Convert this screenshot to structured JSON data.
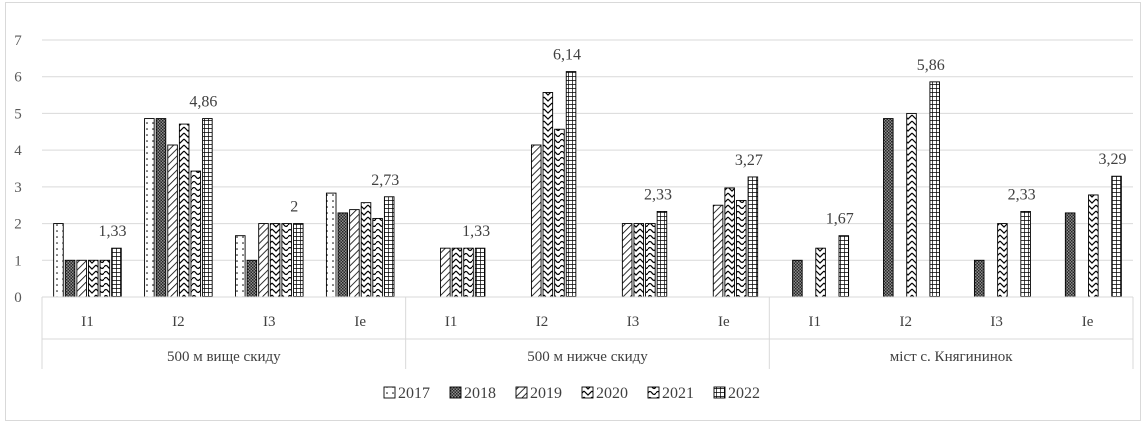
{
  "chart_data": {
    "type": "bar",
    "title": "",
    "xlabel": "",
    "ylabel": "",
    "ylim": [
      0,
      7
    ],
    "yticks": [
      "0",
      "1",
      "2",
      "3",
      "4",
      "5",
      "6",
      "7"
    ],
    "grid": true,
    "legend_position": "bottom",
    "groups": [
      {
        "label": "500 м вище скиду",
        "categories": [
          "I1",
          "I2",
          "I3",
          "Ie"
        ]
      },
      {
        "label": "500 м нижче скиду",
        "categories": [
          "I1",
          "I2",
          "I3",
          "Ie"
        ]
      },
      {
        "label": "міст с. Княгининок",
        "categories": [
          "I1",
          "I2",
          "I3",
          "Ie"
        ]
      }
    ],
    "series": [
      {
        "name": "2017",
        "pattern": "dots",
        "values": [
          2,
          4.86,
          1.67,
          2.83,
          null,
          null,
          null,
          null,
          null,
          null,
          null,
          null
        ]
      },
      {
        "name": "2018",
        "pattern": "dense",
        "values": [
          1,
          4.86,
          1,
          2.29,
          null,
          null,
          null,
          null,
          1,
          4.86,
          1,
          2.29
        ]
      },
      {
        "name": "2019",
        "pattern": "diagonal",
        "values": [
          1,
          4.14,
          2,
          2.38,
          1.33,
          4.14,
          2,
          2.5,
          null,
          null,
          null,
          null
        ]
      },
      {
        "name": "2020",
        "pattern": "zigzag",
        "values": [
          1,
          4.71,
          2,
          2.57,
          1.33,
          5.57,
          2,
          2.97,
          1.33,
          5,
          2,
          2.78
        ]
      },
      {
        "name": "2021",
        "pattern": "wave",
        "values": [
          1,
          3.43,
          2,
          2.14,
          1.33,
          4.57,
          2,
          2.63,
          null,
          null,
          null,
          null
        ]
      },
      {
        "name": "2022",
        "pattern": "grid",
        "values": [
          1.33,
          4.86,
          2,
          2.73,
          1.33,
          6.14,
          2.33,
          3.27,
          1.67,
          5.86,
          2.33,
          3.29
        ]
      }
    ],
    "data_labels": [
      {
        "series": 5,
        "index": 0,
        "text": "1,33"
      },
      {
        "series": 5,
        "index": 1,
        "text": "4,86"
      },
      {
        "series": 5,
        "index": 2,
        "text": "2"
      },
      {
        "series": 5,
        "index": 3,
        "text": "2,73"
      },
      {
        "series": 5,
        "index": 4,
        "text": "1,33"
      },
      {
        "series": 5,
        "index": 5,
        "text": "6,14"
      },
      {
        "series": 5,
        "index": 6,
        "text": "2,33"
      },
      {
        "series": 5,
        "index": 7,
        "text": "3,27"
      },
      {
        "series": 5,
        "index": 8,
        "text": "1,67"
      },
      {
        "series": 5,
        "index": 9,
        "text": "5,86"
      },
      {
        "series": 5,
        "index": 10,
        "text": "2,33"
      },
      {
        "series": 5,
        "index": 11,
        "text": "3,29"
      }
    ]
  }
}
